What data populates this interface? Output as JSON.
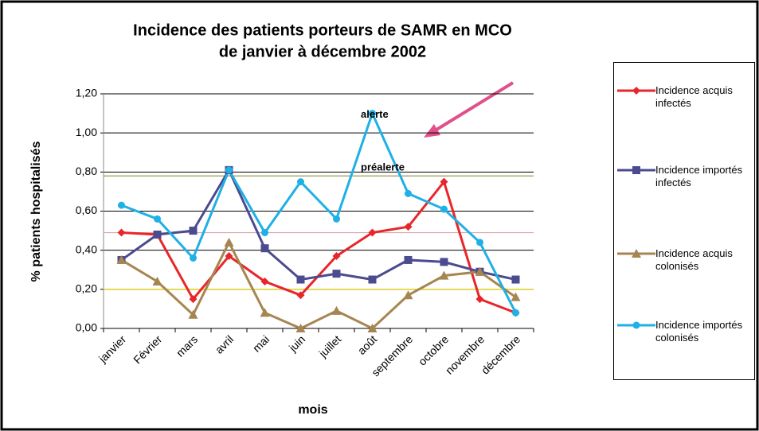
{
  "chart_data": {
    "type": "line",
    "title": [
      "Incidence des patients porteurs de SAMR en MCO",
      "de janvier à décembre 2002"
    ],
    "y_label": "% patients hospitalisés",
    "x_label": "mois",
    "categories": [
      "janvier",
      "Février",
      "mars",
      "avril",
      "mai",
      "juin",
      "juillet",
      "août",
      "septembre",
      "octobre",
      "novembre",
      "décembre"
    ],
    "series": [
      {
        "name": "Incidence acquis infectés",
        "color": "#e8262a",
        "marker": "diamond",
        "values": [
          0.49,
          0.48,
          0.15,
          0.37,
          0.24,
          0.17,
          0.37,
          0.49,
          0.52,
          0.75,
          0.15,
          0.08
        ]
      },
      {
        "name": "Incidence importés infectés",
        "color": "#4b4b8f",
        "marker": "square",
        "values": [
          0.35,
          0.48,
          0.5,
          0.81,
          0.41,
          0.25,
          0.28,
          0.25,
          0.35,
          0.34,
          0.29,
          0.25
        ]
      },
      {
        "name": "Incidence acquis colonisés",
        "color": "#a68550",
        "marker": "triangle",
        "values": [
          0.35,
          0.24,
          0.07,
          0.44,
          0.08,
          0.0,
          0.09,
          0.0,
          0.17,
          0.27,
          0.29,
          0.16
        ]
      },
      {
        "name": "Incidence importés colonisés",
        "color": "#1fb0e6",
        "marker": "circle",
        "values": [
          0.63,
          0.56,
          0.36,
          0.81,
          0.49,
          0.75,
          0.56,
          1.1,
          0.69,
          0.61,
          0.44,
          0.08
        ]
      }
    ],
    "reference_lines": [
      {
        "value": 0.78,
        "color": "#9a9a50"
      },
      {
        "value": 0.49,
        "color": "#d8a8b0"
      },
      {
        "value": 0.2,
        "color": "#f0e000"
      }
    ],
    "annotations": [
      {
        "text": "alerte",
        "x": 7,
        "y": 1.1
      },
      {
        "text": "préalerte",
        "x": 7,
        "y": 0.83
      }
    ],
    "ylim": [
      0,
      1.2
    ],
    "yticks": [
      {
        "value": 0,
        "label": "0,00"
      },
      {
        "value": 0.2,
        "label": "0,20"
      },
      {
        "value": 0.4,
        "label": "0,40"
      },
      {
        "value": 0.6,
        "label": "0,60"
      },
      {
        "value": 0.8,
        "label": "0,80"
      },
      {
        "value": 1.0,
        "label": "1,00"
      },
      {
        "value": 1.2,
        "label": "1,20"
      }
    ],
    "grid": true
  }
}
